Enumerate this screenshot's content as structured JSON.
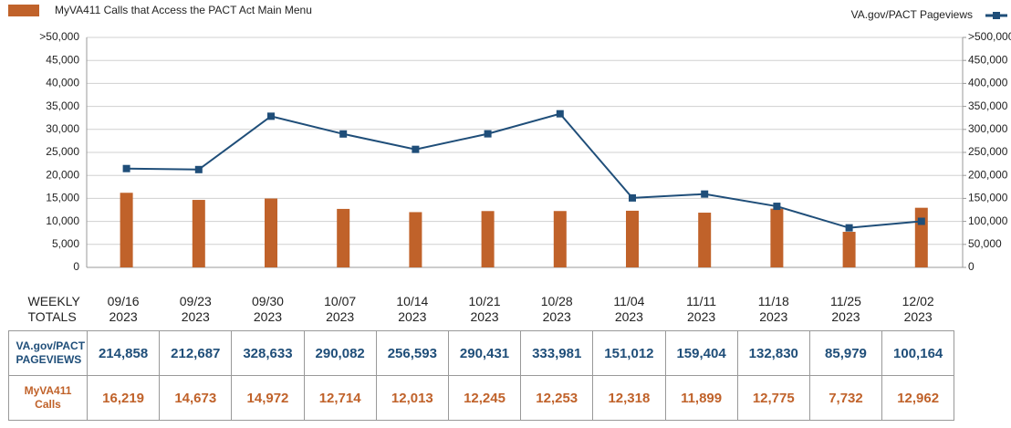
{
  "chart_data": {
    "type": "bar_line",
    "categories": [
      "09/16 2023",
      "09/23 2023",
      "09/30 2023",
      "10/07 2023",
      "10/14 2023",
      "10/21 2023",
      "10/28 2023",
      "11/04 2023",
      "11/11 2023",
      "11/18 2023",
      "11/25 2023",
      "12/02 2023"
    ],
    "series": [
      {
        "name": "MyVA411 Calls that Access the PACT Act Main Menu",
        "type": "bar",
        "color": "#c0622a",
        "axis": "y",
        "values": [
          16219,
          14673,
          14972,
          12714,
          12013,
          12245,
          12253,
          12318,
          11899,
          12775,
          7732,
          12962
        ],
        "value_labels": [
          "16,219",
          "14,673",
          "14,972",
          "12,714",
          "12,013",
          "12,245",
          "12,253",
          "12,318",
          "11,899",
          "12,775",
          "7,732",
          "12,962"
        ]
      },
      {
        "name": "VA.gov/PACT Pageviews",
        "type": "line",
        "color": "#1f4e79",
        "axis": "y2",
        "values": [
          214858,
          212687,
          328633,
          290082,
          256593,
          290431,
          333981,
          151012,
          159404,
          132830,
          85979,
          100164
        ],
        "value_labels": [
          "214,858",
          "212,687",
          "328,633",
          "290,082",
          "256,593",
          "290,431",
          "333,981",
          "151,012",
          "159,404",
          "132,830",
          "85,979",
          "100,164"
        ]
      }
    ],
    "ylim": [
      0,
      50000
    ],
    "yticks": [
      0,
      {
        "value": 5000,
        "label": "5,000"
      },
      {
        "value": 10000,
        "label": "10,000"
      },
      {
        "value": 15000,
        "label": "15,000"
      },
      {
        "value": 20000,
        "label": "20,000"
      },
      {
        "value": 25000,
        "label": "25,000"
      },
      {
        "value": 30000,
        "label": "30,000"
      },
      {
        "value": 35000,
        "label": "35,000"
      },
      {
        "value": 40000,
        "label": "40,000"
      },
      {
        "value": 45000,
        "label": "45,000"
      },
      {
        "value": 50000,
        "label": ">50,000"
      }
    ],
    "y2lim": [
      0,
      500000
    ],
    "y2ticks": [
      0,
      {
        "value": 50000,
        "label": "50,000"
      },
      {
        "value": 100000,
        "label": "100,000"
      },
      {
        "value": 150000,
        "label": "150,000"
      },
      {
        "value": 200000,
        "label": "200,000"
      },
      {
        "value": 250000,
        "label": "250,000"
      },
      {
        "value": 300000,
        "label": "300,000"
      },
      {
        "value": 350000,
        "label": "350,000"
      },
      {
        "value": 400000,
        "label": "400,000"
      },
      {
        "value": 450000,
        "label": "450,000"
      },
      {
        "value": 500000,
        "label": ">500,000"
      }
    ],
    "grid": true
  },
  "table": {
    "corner": "WEEKLY TOTALS",
    "row_labels": [
      "VA.gov/PACT PAGEVIEWS",
      "MyVA411 Calls"
    ]
  }
}
